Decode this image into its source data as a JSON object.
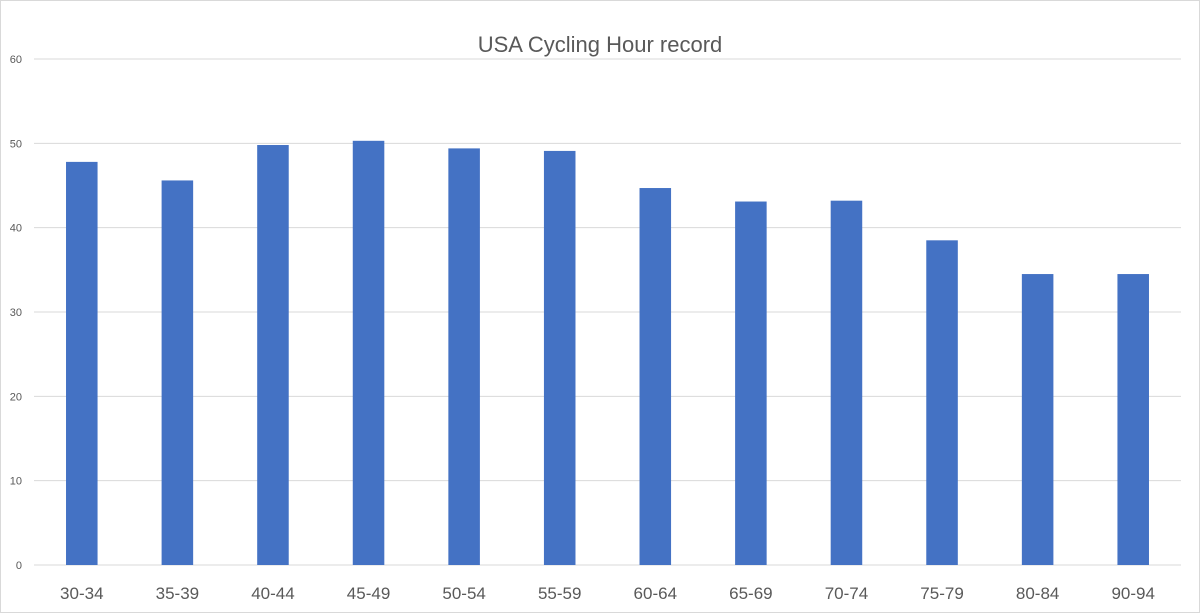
{
  "chart_data": {
    "type": "bar",
    "title": "USA Cycling Hour record",
    "xlabel": "",
    "ylabel": "",
    "categories": [
      "30-34",
      "35-39",
      "40-44",
      "45-49",
      "50-54",
      "55-59",
      "60-64",
      "65-69",
      "70-74",
      "75-79",
      "80-84",
      "90-94"
    ],
    "values": [
      47.8,
      45.6,
      49.8,
      50.3,
      49.4,
      49.1,
      44.7,
      43.1,
      43.2,
      38.5,
      34.5,
      34.5
    ],
    "ylim": [
      0,
      60
    ],
    "yticks": [
      "0",
      "10",
      "20",
      "30",
      "40",
      "50",
      "60"
    ],
    "grid": true,
    "legend": "none",
    "bar_color": "#4472C4"
  }
}
